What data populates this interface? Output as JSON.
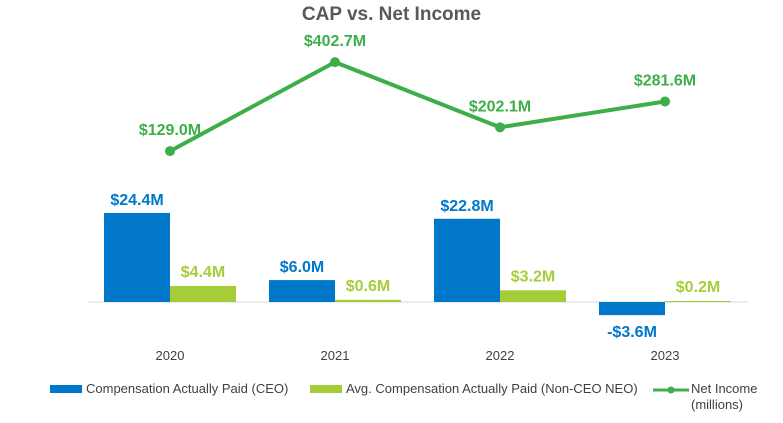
{
  "chart_data": {
    "type": "bar+line",
    "title": "CAP vs. Net Income",
    "categories": [
      "2020",
      "2021",
      "2022",
      "2023"
    ],
    "series": [
      {
        "name": "Compensation Actually Paid (CEO)",
        "type": "bar",
        "color": "#0077C8",
        "values": [
          24.4,
          6.0,
          22.8,
          -3.6
        ],
        "labels": [
          "$24.4M",
          "$6.0M",
          "$22.8M",
          "-$3.6M"
        ]
      },
      {
        "name": "Avg. Compensation Actually Paid (Non-CEO NEO)",
        "type": "bar",
        "color": "#A5CD39",
        "values": [
          4.4,
          0.6,
          3.2,
          0.2
        ],
        "labels": [
          "$4.4M",
          "$0.6M",
          "$3.2M",
          "$0.2M"
        ]
      },
      {
        "name": "Net Income (millions)",
        "type": "line",
        "color": "#3DAE49",
        "values": [
          129.0,
          402.7,
          202.1,
          281.6
        ],
        "labels": [
          "$129.0M",
          "$402.7M",
          "$202.1M",
          "$281.6M"
        ]
      }
    ],
    "legend": {
      "position": "bottom",
      "line_label_1": "Net Income",
      "line_label_2": "(millions)"
    },
    "grid": false
  }
}
